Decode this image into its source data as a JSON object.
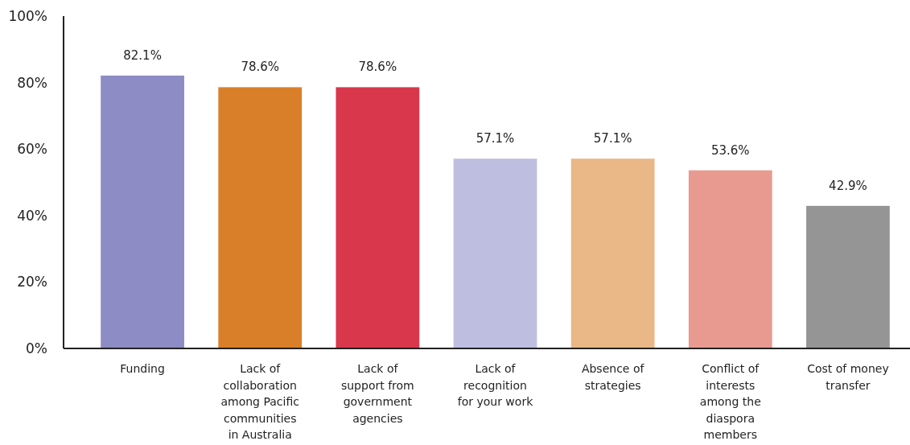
{
  "chart_data": {
    "type": "bar",
    "categories": [
      "Funding",
      "Lack of collaboration among Pacific communities in Australia",
      "Lack of support from government agencies",
      "Lack of recognition for your work",
      "Absence of strategies",
      "Conflict of interests among the diaspora members",
      "Cost of money transfer"
    ],
    "values": [
      82.1,
      78.6,
      78.6,
      57.1,
      57.1,
      53.6,
      42.9
    ],
    "colors": [
      "#8d8cc4",
      "#d97f2a",
      "#d9384c",
      "#bebfe0",
      "#e9b886",
      "#e89a90",
      "#959595"
    ],
    "value_labels": [
      "82.1%",
      "78.6%",
      "78.6%",
      "57.1%",
      "57.1%",
      "53.6%",
      "42.9%"
    ],
    "ylim": [
      0,
      100
    ],
    "yticks": [
      {
        "value": 0,
        "label": "0%"
      },
      {
        "value": 20,
        "label": "20%"
      },
      {
        "value": 40,
        "label": "40%"
      },
      {
        "value": 60,
        "label": "60%"
      },
      {
        "value": 80,
        "label": "80%"
      },
      {
        "value": 100,
        "label": "100%"
      }
    ],
    "grid": false
  }
}
